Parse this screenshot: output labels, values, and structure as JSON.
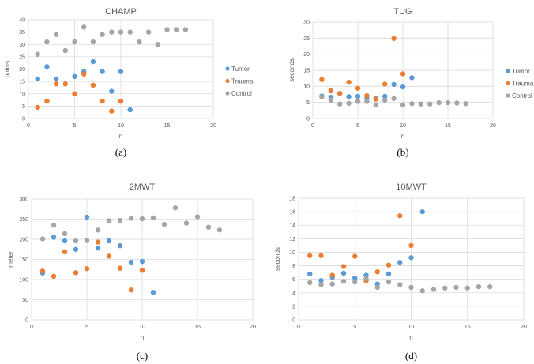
{
  "colors": {
    "Tumor": "#5B9BD5",
    "Trauma": "#ED7D31",
    "Control": "#A5A5A5"
  },
  "chart_data": [
    {
      "type": "scatter",
      "title": "CHAMP",
      "caption": "(a)",
      "xlabel": "n",
      "ylabel": "points",
      "xlim": [
        0,
        20
      ],
      "ylim": [
        0,
        40
      ],
      "xticks": [
        0,
        5,
        10,
        15,
        20
      ],
      "yticks": [
        0,
        5,
        10,
        15,
        20,
        25,
        30,
        35,
        40
      ],
      "grid": "both",
      "legend": "right",
      "series": [
        {
          "name": "Tumor",
          "x": [
            1,
            2,
            3,
            5,
            6,
            7,
            8,
            9,
            10,
            11
          ],
          "y": [
            16,
            21,
            16,
            17,
            19,
            23,
            19,
            11,
            19,
            3.5
          ]
        },
        {
          "name": "Trauma",
          "x": [
            1,
            2,
            3,
            4,
            5,
            6,
            7,
            8,
            9,
            10
          ],
          "y": [
            4.5,
            7,
            14,
            14,
            10,
            18,
            13.5,
            7,
            3,
            7
          ]
        },
        {
          "name": "Control",
          "x": [
            1,
            2,
            3,
            4,
            5,
            6,
            7,
            8,
            9,
            10,
            11,
            12,
            13,
            14,
            15,
            16,
            17
          ],
          "y": [
            26,
            31,
            34,
            27.5,
            31,
            37,
            31,
            34,
            35,
            35,
            35,
            31,
            35,
            30,
            36,
            36,
            36
          ]
        }
      ]
    },
    {
      "type": "scatter",
      "title": "TUG",
      "caption": "(b)",
      "xlabel": "n",
      "ylabel": "seconds",
      "xlim": [
        0,
        20
      ],
      "ylim": [
        0,
        30
      ],
      "xticks": [
        0,
        5,
        10,
        15,
        20
      ],
      "yticks": [
        0,
        5,
        10,
        15,
        20,
        25,
        30
      ],
      "grid": "both",
      "legend": "right",
      "series": [
        {
          "name": "Tumor",
          "x": [
            1,
            2,
            3,
            4,
            5,
            6,
            7,
            8,
            9,
            10,
            11
          ],
          "y": [
            7,
            6.6,
            7.8,
            6.8,
            6.9,
            6.3,
            6.3,
            6.9,
            10.6,
            9.8,
            12.7
          ]
        },
        {
          "name": "Trauma",
          "x": [
            1,
            2,
            3,
            4,
            5,
            6,
            7,
            8,
            9,
            10
          ],
          "y": [
            12.1,
            8.6,
            7.8,
            11.3,
            9.4,
            7.1,
            6,
            10.7,
            24.9,
            13.9
          ]
        },
        {
          "name": "Control",
          "x": [
            1,
            2,
            3,
            4,
            5,
            6,
            7,
            8,
            9,
            10,
            11,
            12,
            13,
            14,
            15,
            16,
            17
          ],
          "y": [
            6.7,
            5.7,
            4.5,
            4.7,
            5.3,
            5.3,
            4.2,
            5.7,
            6.2,
            4.2,
            4.6,
            4.5,
            4.5,
            4.9,
            4.9,
            4.8,
            4.6
          ]
        }
      ]
    },
    {
      "type": "scatter",
      "title": "2MWT",
      "caption": "(c)",
      "xlabel": "n",
      "ylabel": "meter",
      "xlim": [
        0,
        20
      ],
      "ylim": [
        0,
        300
      ],
      "xticks": [
        0,
        5,
        10,
        15,
        20
      ],
      "yticks": [
        0,
        50,
        100,
        150,
        200,
        250,
        300
      ],
      "grid": "both",
      "legend": "none",
      "series": [
        {
          "name": "Tumor",
          "x": [
            1,
            2,
            3,
            4,
            5,
            6,
            7,
            8,
            9,
            10,
            11
          ],
          "y": [
            116,
            205,
            196,
            175,
            255,
            178,
            196,
            184,
            143,
            145,
            68
          ]
        },
        {
          "name": "Trauma",
          "x": [
            1,
            2,
            3,
            4,
            5,
            6,
            7,
            8,
            9,
            10
          ],
          "y": [
            121,
            108,
            169,
            117,
            127,
            193,
            158,
            128,
            74,
            123
          ]
        },
        {
          "name": "Control",
          "x": [
            1,
            2,
            3,
            4,
            5,
            6,
            7,
            8,
            9,
            10,
            11,
            12,
            13,
            14,
            15,
            16,
            17
          ],
          "y": [
            201,
            235,
            214,
            196,
            197,
            223,
            246,
            247,
            252,
            251,
            253,
            237,
            278,
            240,
            256,
            230,
            223
          ]
        }
      ]
    },
    {
      "type": "scatter",
      "title": "10MWT",
      "caption": "(d)",
      "xlabel": "n",
      "ylabel": "seconds",
      "xlim": [
        0,
        20
      ],
      "ylim": [
        0,
        18
      ],
      "xticks": [
        0,
        5,
        10,
        15,
        20
      ],
      "yticks": [
        0,
        2,
        4,
        6,
        8,
        10,
        12,
        14,
        16,
        18
      ],
      "grid": "both",
      "legend": "none",
      "series": [
        {
          "name": "Tumor",
          "x": [
            1,
            2,
            3,
            4,
            5,
            6,
            7,
            8,
            9,
            10,
            11
          ],
          "y": [
            6.8,
            5.8,
            6.3,
            6.9,
            6.2,
            6.6,
            5.3,
            6.8,
            8.5,
            9.2,
            16
          ]
        },
        {
          "name": "Trauma",
          "x": [
            1,
            2,
            3,
            4,
            5,
            6,
            7,
            8,
            9,
            10
          ],
          "y": [
            9.5,
            9.5,
            6.6,
            7.9,
            9.4,
            5.8,
            7.1,
            8.1,
            15.4,
            11
          ]
        },
        {
          "name": "Control",
          "x": [
            1,
            2,
            3,
            4,
            5,
            6,
            7,
            8,
            9,
            10,
            11,
            12,
            13,
            14,
            15,
            16,
            17
          ],
          "y": [
            5.5,
            5.2,
            5.3,
            5.7,
            5.6,
            6.1,
            4.8,
            5.6,
            5.2,
            4.8,
            4.3,
            4.5,
            4.7,
            4.8,
            4.7,
            4.9,
            4.9
          ]
        }
      ]
    }
  ]
}
